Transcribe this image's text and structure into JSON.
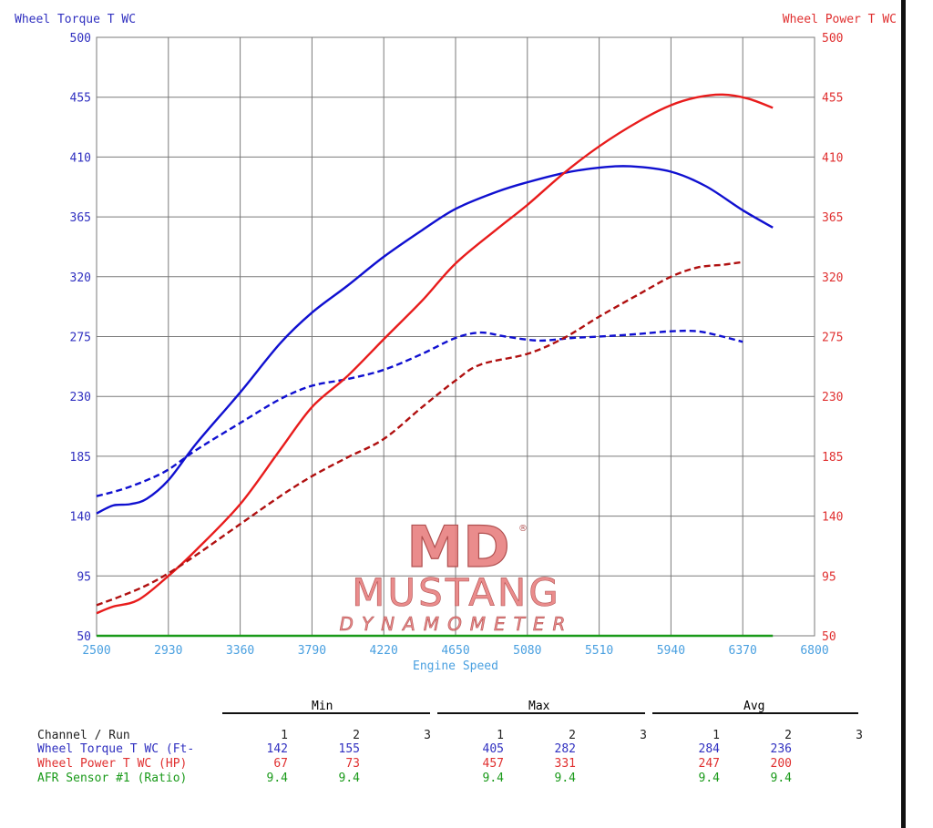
{
  "colors": {
    "torque": "#1010d0",
    "power": "#e81c1c",
    "power_dashed": "#b01010",
    "afr": "#1a9a1a",
    "axis_left": "#3030c0",
    "axis_right": "#e03030",
    "axis_bottom": "#4aa0e0",
    "grid": "#7a7a7a"
  },
  "chart_data": {
    "type": "line",
    "title_left": "Wheel Torque T WC",
    "title_right": "Wheel Power T WC",
    "xlabel": "Engine Speed",
    "xlim": [
      2500,
      6800
    ],
    "ylim": [
      50,
      500
    ],
    "x_ticks": [
      "2500",
      "2930",
      "3360",
      "3790",
      "4220",
      "4650",
      "5080",
      "5510",
      "5940",
      "6370",
      "6800"
    ],
    "y_ticks": [
      "50",
      "95",
      "140",
      "185",
      "230",
      "275",
      "320",
      "365",
      "410",
      "455",
      "500"
    ],
    "grid": true,
    "series": [
      {
        "name": "Wheel Torque T WC",
        "run": 1,
        "style": "solid",
        "color": "#1010d0",
        "x": [
          2500,
          2600,
          2700,
          2800,
          2930,
          3100,
          3360,
          3600,
          3790,
          4000,
          4220,
          4450,
          4650,
          4900,
          5080,
          5300,
          5510,
          5700,
          5940,
          6150,
          6370,
          6550
        ],
        "y": [
          142,
          148,
          149,
          153,
          167,
          195,
          233,
          270,
          293,
          313,
          335,
          355,
          371,
          384,
          391,
          398,
          402,
          403,
          399,
          388,
          370,
          357
        ]
      },
      {
        "name": "Wheel Torque T WC",
        "run": 2,
        "style": "dashed",
        "color": "#1010d0",
        "x": [
          2500,
          2650,
          2800,
          2930,
          3100,
          3360,
          3600,
          3790,
          4000,
          4220,
          4450,
          4650,
          4800,
          4950,
          5150,
          5350,
          5510,
          5750,
          5940,
          6100,
          6250,
          6370
        ],
        "y": [
          155,
          160,
          167,
          175,
          190,
          210,
          228,
          238,
          243,
          250,
          262,
          274,
          278,
          275,
          272,
          274,
          275,
          277,
          279,
          279,
          275,
          271
        ]
      },
      {
        "name": "Wheel Power T WC",
        "run": 1,
        "style": "solid",
        "color": "#e81c1c",
        "x": [
          2500,
          2600,
          2750,
          2930,
          3100,
          3360,
          3600,
          3790,
          4000,
          4220,
          4450,
          4650,
          4900,
          5080,
          5300,
          5510,
          5750,
          5940,
          6100,
          6250,
          6400,
          6550
        ],
        "y": [
          67,
          72,
          77,
          95,
          115,
          149,
          190,
          222,
          245,
          273,
          302,
          330,
          356,
          374,
          398,
          418,
          437,
          449,
          455,
          457,
          454,
          447
        ]
      },
      {
        "name": "Wheel Power T WC",
        "run": 2,
        "style": "dashed",
        "color": "#b01010",
        "x": [
          2500,
          2650,
          2800,
          2930,
          3100,
          3360,
          3600,
          3790,
          4000,
          4220,
          4450,
          4650,
          4800,
          5080,
          5300,
          5510,
          5750,
          5940,
          6100,
          6250,
          6370
        ],
        "y": [
          73,
          80,
          88,
          97,
          111,
          134,
          155,
          170,
          184,
          198,
          222,
          242,
          254,
          262,
          274,
          290,
          307,
          320,
          327,
          329,
          331
        ]
      },
      {
        "name": "AFR Sensor #1",
        "run": 1,
        "style": "solid",
        "color": "#1a9a1a",
        "x": [
          2500,
          6550
        ],
        "y": [
          50,
          50
        ]
      }
    ]
  },
  "stats": {
    "headers": {
      "min": "Min",
      "max": "Max",
      "avg": "Avg"
    },
    "channel_header": "Channel / Run",
    "run_labels": [
      "1",
      "2",
      "3"
    ],
    "rows": [
      {
        "name": "Wheel Torque T WC (Ft-",
        "color": "#3030c0",
        "min": [
          "142",
          "155",
          ""
        ],
        "max": [
          "405",
          "282",
          ""
        ],
        "avg": [
          "284",
          "236",
          ""
        ]
      },
      {
        "name": "Wheel Power T WC (HP)",
        "color": "#e03030",
        "min": [
          "67",
          "73",
          ""
        ],
        "max": [
          "457",
          "331",
          ""
        ],
        "avg": [
          "247",
          "200",
          ""
        ]
      },
      {
        "name": "AFR Sensor #1 (Ratio)",
        "color": "#1a9a1a",
        "min": [
          "9.4",
          "9.4",
          ""
        ],
        "max": [
          "9.4",
          "9.4",
          ""
        ],
        "avg": [
          "9.4",
          "9.4",
          ""
        ]
      }
    ]
  },
  "logo": {
    "mark": "MD",
    "registered": "®",
    "name": "MUSTANG",
    "sub": "DYNAMOMETER",
    "color": "#e88080"
  }
}
